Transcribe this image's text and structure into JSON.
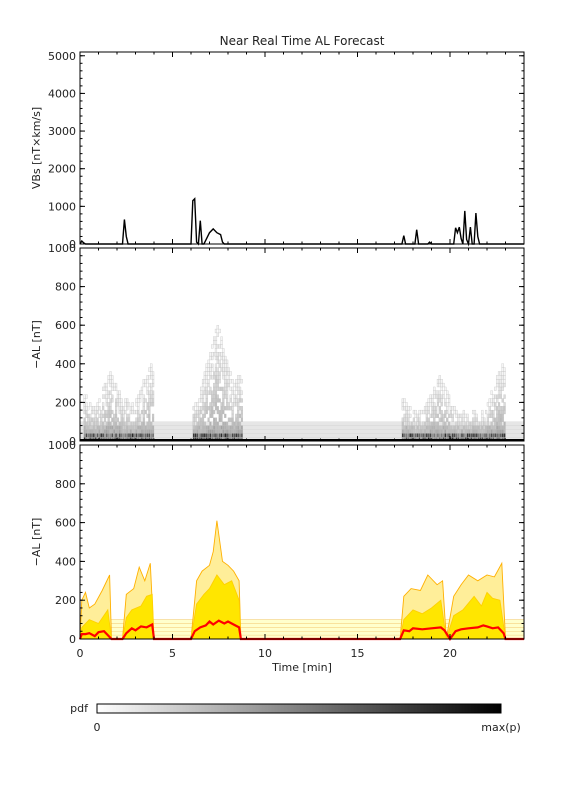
{
  "chart_data": {
    "title": "Near Real Time AL Forecast",
    "xlabel": "Time [min]",
    "xlim": [
      0,
      24
    ],
    "xticks": [
      "0",
      "5",
      "10",
      "15",
      "20"
    ],
    "colorbar": {
      "label": "pdf",
      "min_label": "0",
      "max_label": "max(p)"
    },
    "panels": [
      {
        "type": "line",
        "ylabel": "VBs [nT×km/s]",
        "ylim": [
          0,
          5100
        ],
        "yticks": [
          "0",
          "1000",
          "2000",
          "3000",
          "4000",
          "5000"
        ],
        "series": [
          {
            "x": [
              0.0,
              0.1,
              0.2,
              0.3,
              2.3,
              2.4,
              2.5,
              2.6,
              2.7,
              6.0,
              6.1,
              6.2,
              6.3,
              6.4,
              6.5,
              6.6,
              6.7,
              6.8,
              7.0,
              7.2,
              7.4,
              7.6,
              7.7,
              7.8,
              7.9,
              17.4,
              17.5,
              17.6,
              17.7,
              18.1,
              18.2,
              18.3,
              18.8,
              18.9,
              19.0,
              20.2,
              20.3,
              20.4,
              20.5,
              20.6,
              20.7,
              20.8,
              20.9,
              21.0,
              21.1,
              21.2,
              21.3,
              21.4,
              21.5,
              21.6,
              21.7,
              21.8,
              24.0
            ],
            "y": [
              0,
              80,
              30,
              0,
              0,
              650,
              200,
              0,
              0,
              0,
              1150,
              1200,
              50,
              0,
              620,
              0,
              0,
              100,
              300,
              400,
              300,
              250,
              50,
              0,
              0,
              0,
              220,
              0,
              0,
              0,
              380,
              0,
              0,
              50,
              0,
              0,
              430,
              300,
              450,
              150,
              0,
              880,
              120,
              0,
              450,
              0,
              0,
              820,
              200,
              0,
              0,
              0,
              0
            ]
          }
        ]
      },
      {
        "type": "heatmap",
        "ylabel": "−AL [nT]",
        "ylim": [
          0,
          1000
        ],
        "yticks": [
          "0",
          "200",
          "400",
          "600",
          "800",
          "1000"
        ],
        "active_intervals": [
          [
            0.2,
            4.0
          ],
          [
            6.1,
            8.7
          ],
          [
            17.4,
            23.0
          ]
        ],
        "spread_upper_nT": [
          {
            "x": 0.2,
            "y": 240
          },
          {
            "x": 1.6,
            "y": 350
          },
          {
            "x": 2.5,
            "y": 230
          },
          {
            "x": 3.8,
            "y": 400
          },
          {
            "x": 6.1,
            "y": 200
          },
          {
            "x": 7.4,
            "y": 610
          },
          {
            "x": 8.6,
            "y": 360
          },
          {
            "x": 17.4,
            "y": 220
          },
          {
            "x": 19.4,
            "y": 330
          },
          {
            "x": 22.8,
            "y": 400
          }
        ]
      },
      {
        "type": "area",
        "ylabel": "−AL [nT]",
        "ylim": [
          0,
          1000
        ],
        "yticks": [
          "0",
          "200",
          "400",
          "600",
          "800",
          "1000"
        ],
        "series": [
          {
            "color": "#ff0000",
            "x": [
              0.0,
              0.1,
              0.3,
              0.5,
              0.8,
              1.0,
              1.3,
              1.5,
              1.7,
              2.3,
              2.5,
              2.8,
              3.0,
              3.3,
              3.6,
              3.9,
              4.0,
              6.0,
              6.2,
              6.5,
              6.8,
              7.0,
              7.2,
              7.5,
              7.8,
              8.0,
              8.3,
              8.6,
              8.7,
              17.3,
              17.5,
              17.8,
              18.0,
              18.5,
              19.0,
              19.5,
              19.7,
              20.0,
              20.3,
              20.6,
              21.0,
              21.5,
              21.8,
              22.0,
              22.3,
              22.6,
              22.9,
              23.0,
              24.0
            ],
            "y": [
              0,
              25,
              25,
              30,
              15,
              35,
              40,
              20,
              0,
              0,
              30,
              55,
              45,
              65,
              60,
              75,
              0,
              0,
              40,
              60,
              70,
              90,
              75,
              95,
              80,
              90,
              75,
              60,
              0,
              0,
              45,
              40,
              55,
              50,
              55,
              60,
              45,
              0,
              40,
              50,
              55,
              60,
              70,
              65,
              55,
              60,
              30,
              0,
              0
            ]
          },
          {
            "color": "#ffd000",
            "x": [
              0.0,
              0.1,
              0.5,
              1.0,
              1.5,
              1.7,
              2.3,
              2.5,
              2.8,
              3.3,
              3.6,
              3.9,
              4.0,
              6.0,
              6.3,
              6.7,
              7.0,
              7.4,
              7.8,
              8.2,
              8.6,
              8.7,
              17.3,
              17.5,
              18.0,
              18.5,
              19.0,
              19.5,
              19.8,
              20.2,
              20.7,
              21.3,
              21.7,
              22.0,
              22.3,
              22.7,
              23.0,
              24.0
            ],
            "y": [
              0,
              60,
              100,
              80,
              150,
              0,
              0,
              110,
              150,
              170,
              220,
              230,
              0,
              0,
              180,
              230,
              260,
              330,
              280,
              300,
              200,
              0,
              0,
              100,
              150,
              130,
              160,
              200,
              0,
              120,
              150,
              220,
              170,
              240,
              210,
              200,
              0,
              0
            ]
          },
          {
            "color": "#ffb000",
            "x": [
              0.0,
              0.1,
              0.3,
              0.5,
              0.8,
              1.2,
              1.6,
              1.7,
              2.3,
              2.5,
              2.9,
              3.2,
              3.5,
              3.8,
              4.0,
              6.0,
              6.3,
              6.6,
              7.0,
              7.2,
              7.4,
              7.7,
              8.0,
              8.3,
              8.6,
              8.7,
              17.3,
              17.5,
              17.9,
              18.4,
              18.8,
              19.3,
              19.6,
              19.8,
              20.2,
              20.6,
              21.0,
              21.5,
              22.0,
              22.4,
              22.8,
              23.0,
              24.0
            ],
            "y": [
              0,
              200,
              240,
              160,
              180,
              250,
              330,
              0,
              0,
              230,
              260,
              370,
              300,
              390,
              0,
              0,
              300,
              350,
              380,
              450,
              610,
              400,
              380,
              350,
              300,
              0,
              0,
              220,
              260,
              250,
              330,
              280,
              300,
              0,
              220,
              280,
              330,
              300,
              330,
              320,
              390,
              0,
              0
            ]
          }
        ]
      }
    ]
  }
}
